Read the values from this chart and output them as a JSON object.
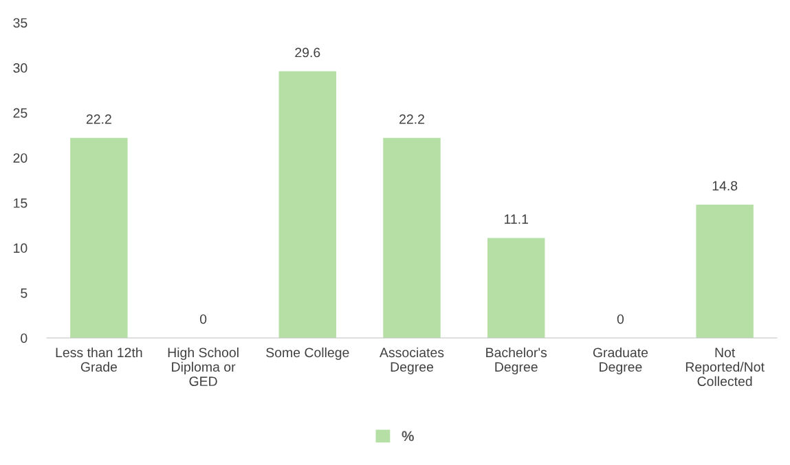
{
  "chart_data": {
    "type": "bar",
    "categories": [
      "Less than 12th\nGrade",
      "High School\nDiploma or\nGED",
      "Some College",
      "Associates\nDegree",
      "Bachelor's\nDegree",
      "Graduate\nDegree",
      "Not\nReported/Not\nCollected"
    ],
    "series": [
      {
        "name": "%",
        "color": "#b6dfa5",
        "values": [
          22.2,
          0,
          29.6,
          22.2,
          11.1,
          0,
          14.8
        ]
      }
    ],
    "ylim": [
      0,
      35
    ],
    "yticks": [
      0,
      5,
      10,
      15,
      20,
      25,
      30,
      35
    ],
    "data_labels": true,
    "grid": false,
    "legend": "bottom"
  }
}
